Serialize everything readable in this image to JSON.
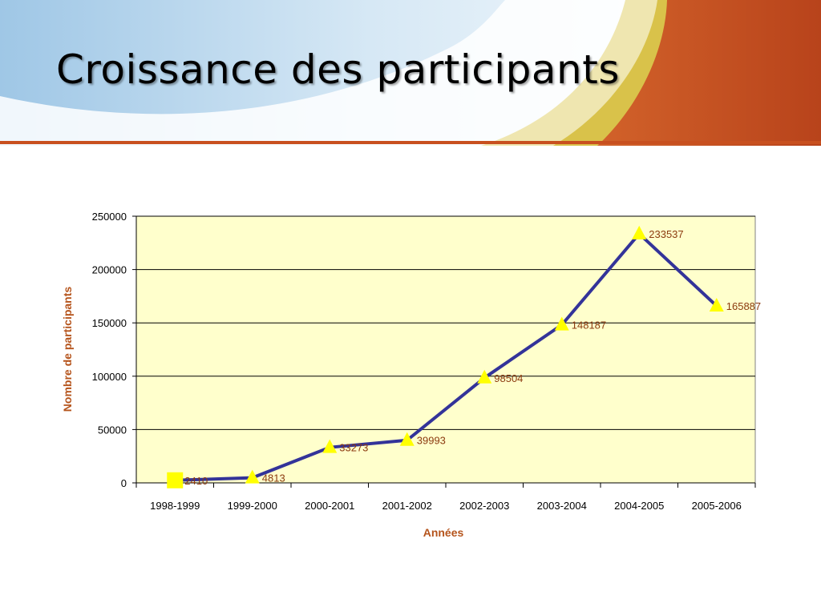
{
  "slide": {
    "title": "Croissance des participants"
  },
  "colors": {
    "plot_bg": "#ffffcc",
    "line": "#333399",
    "marker": "#ffff00",
    "axis_title": "#b5541c",
    "data_label": "#8b3a0f",
    "header_orange": "#c8501f",
    "header_gold": "#d9c24a"
  },
  "chart_data": {
    "type": "line",
    "title": "",
    "xlabel": "Années",
    "ylabel": "Nombre de participants",
    "categories": [
      "1998-1999",
      "1999-2000",
      "2000-2001",
      "2001-2002",
      "2002-2003",
      "2003-2004",
      "2004-2005",
      "2005-2006"
    ],
    "series": [
      {
        "values": [
          2410,
          4813,
          33273,
          39993,
          98504,
          148187,
          233537,
          165887
        ],
        "labels": [
          "2410",
          "4813",
          "33273",
          "39993",
          "98504",
          "148187",
          "233537",
          "165887"
        ],
        "markers": [
          "square",
          "triangle",
          "triangle",
          "triangle",
          "triangle",
          "triangle",
          "triangle",
          "triangle"
        ]
      }
    ],
    "yticks": [
      "0",
      "50000",
      "100000",
      "150000",
      "200000",
      "250000"
    ],
    "ylim": [
      0,
      250000
    ],
    "grid": true,
    "legend": "none"
  }
}
